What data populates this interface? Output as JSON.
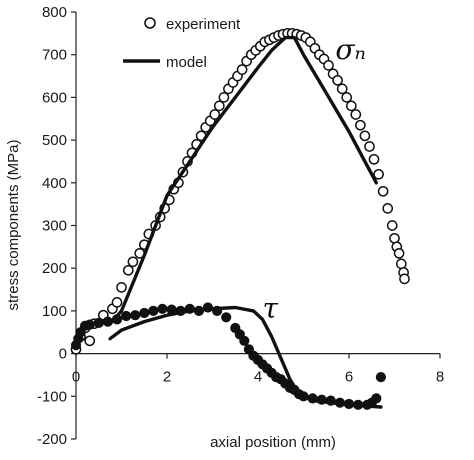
{
  "chart_data": {
    "type": "scatter",
    "title": "",
    "xlabel": "axial position (mm)",
    "ylabel": "stress components (MPa)",
    "xlim": [
      0,
      8
    ],
    "ylim": [
      -200,
      800
    ],
    "x_ticks": [
      0,
      2,
      4,
      6,
      8
    ],
    "y_ticks": [
      -200,
      -100,
      0,
      100,
      200,
      300,
      400,
      500,
      600,
      700,
      800
    ],
    "grid": false,
    "legend_position": "top-left",
    "legend": {
      "experiment": "experiment",
      "model": "model"
    },
    "annotations": {
      "sigma_n": {
        "label": "σₙ",
        "x": 5.7,
        "y": 690
      },
      "tau": {
        "label": "τ",
        "x": 4.1,
        "y": 85
      }
    },
    "series": [
      {
        "component": "sigma_n",
        "kind": "experiment",
        "marker": "open-circle",
        "x": [
          0.0,
          0.1,
          0.2,
          0.3,
          0.4,
          0.6,
          0.8,
          0.9,
          1.0,
          1.15,
          1.25,
          1.4,
          1.5,
          1.6,
          1.75,
          1.85,
          1.95,
          2.05,
          2.15,
          2.25,
          2.35,
          2.45,
          2.55,
          2.65,
          2.75,
          2.85,
          2.95,
          3.05,
          3.15,
          3.25,
          3.35,
          3.45,
          3.55,
          3.65,
          3.75,
          3.85,
          3.95,
          4.05,
          4.15,
          4.25,
          4.35,
          4.45,
          4.55,
          4.65,
          4.75,
          4.85,
          4.95,
          5.05,
          5.15,
          5.25,
          5.35,
          5.45,
          5.55,
          5.65,
          5.75,
          5.85,
          5.95,
          6.05,
          6.15,
          6.25,
          6.35,
          6.45,
          6.55,
          6.65,
          6.75,
          6.85,
          6.95,
          7.0,
          7.05,
          7.1,
          7.15,
          7.2,
          7.22
        ],
        "y": [
          10,
          40,
          60,
          30,
          70,
          90,
          105,
          120,
          155,
          195,
          215,
          235,
          255,
          280,
          300,
          320,
          340,
          360,
          385,
          400,
          425,
          450,
          470,
          490,
          510,
          530,
          545,
          560,
          580,
          600,
          620,
          635,
          650,
          665,
          685,
          700,
          710,
          720,
          730,
          735,
          740,
          745,
          748,
          750,
          750,
          748,
          745,
          740,
          730,
          715,
          700,
          690,
          675,
          655,
          640,
          620,
          600,
          580,
          560,
          535,
          510,
          485,
          455,
          420,
          380,
          340,
          300,
          270,
          250,
          235,
          210,
          190,
          175
        ]
      },
      {
        "component": "sigma_n",
        "kind": "model",
        "line": "solid",
        "x": [
          0.75,
          1.0,
          1.5,
          2.0,
          2.5,
          3.0,
          3.5,
          4.0,
          4.3,
          4.6,
          4.8,
          5.0,
          5.5,
          6.0,
          6.3,
          6.6
        ],
        "y": [
          70,
          100,
          230,
          370,
          450,
          530,
          600,
          670,
          710,
          740,
          740,
          700,
          610,
          520,
          460,
          400
        ]
      },
      {
        "component": "tau",
        "kind": "experiment",
        "marker": "filled-circle",
        "x": [
          0.0,
          0.05,
          0.1,
          0.2,
          0.3,
          0.5,
          0.7,
          0.9,
          1.1,
          1.3,
          1.5,
          1.7,
          1.9,
          2.1,
          2.3,
          2.5,
          2.7,
          2.9,
          3.1,
          3.3,
          3.5,
          3.6,
          3.7,
          3.8,
          3.9,
          4.0,
          4.1,
          4.2,
          4.3,
          4.4,
          4.5,
          4.6,
          4.7,
          4.8,
          4.9,
          5.0,
          5.2,
          5.4,
          5.6,
          5.8,
          6.0,
          6.2,
          6.4,
          6.5,
          6.6,
          6.7
        ],
        "y": [
          20,
          35,
          50,
          65,
          68,
          72,
          75,
          80,
          88,
          90,
          95,
          100,
          105,
          103,
          100,
          105,
          100,
          108,
          100,
          85,
          60,
          45,
          30,
          10,
          -5,
          -15,
          -25,
          -35,
          -45,
          -55,
          -60,
          -70,
          -80,
          -85,
          -95,
          -100,
          -105,
          -108,
          -110,
          -115,
          -118,
          -120,
          -120,
          -115,
          -105,
          -55
        ]
      },
      {
        "component": "tau",
        "kind": "model",
        "line": "solid",
        "x": [
          0.75,
          1.0,
          1.5,
          2.0,
          2.5,
          3.0,
          3.5,
          3.9,
          4.1,
          4.3,
          4.5,
          4.7,
          4.9,
          5.2,
          5.6,
          6.0,
          6.4,
          6.7
        ],
        "y": [
          35,
          55,
          75,
          90,
          100,
          105,
          108,
          100,
          80,
          40,
          -10,
          -60,
          -95,
          -110,
          -115,
          -120,
          -123,
          -125
        ]
      }
    ]
  }
}
